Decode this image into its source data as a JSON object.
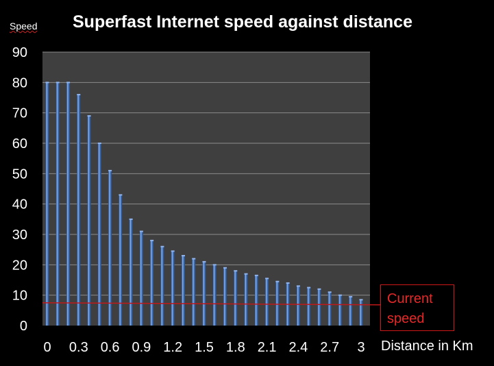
{
  "chart_data": {
    "type": "bar",
    "title": "Superfast Internet speed against distance",
    "ylabel": "Speed",
    "xlabel": "Distance in Km",
    "ylim": [
      0,
      90
    ],
    "y_ticks": [
      0,
      10,
      20,
      30,
      40,
      50,
      60,
      70,
      80,
      90
    ],
    "x_tick_labels": [
      "0",
      "0.3",
      "0.6",
      "0.9",
      "1.2",
      "1.5",
      "1.8",
      "2.1",
      "2.4",
      "2.7",
      "3"
    ],
    "x": [
      0,
      0.1,
      0.2,
      0.3,
      0.4,
      0.5,
      0.6,
      0.7,
      0.8,
      0.9,
      1.0,
      1.1,
      1.2,
      1.3,
      1.4,
      1.5,
      1.6,
      1.7,
      1.8,
      1.9,
      2.0,
      2.1,
      2.2,
      2.3,
      2.4,
      2.5,
      2.6,
      2.7,
      2.8,
      2.9,
      3.0
    ],
    "values": [
      80,
      80,
      80,
      76,
      69,
      60,
      51,
      43,
      35,
      31,
      28,
      26,
      24.5,
      23,
      22,
      21,
      20,
      19,
      18,
      17,
      16.5,
      15.5,
      14.5,
      14,
      13,
      12.5,
      12,
      11,
      10,
      9.5,
      8.5
    ],
    "grid": true,
    "reference_line": {
      "value": 7.5,
      "label": "Current speed",
      "label_lines": [
        "Current",
        "speed"
      ]
    },
    "colors": {
      "background": "#000000",
      "plot_area": "#3f3f3f",
      "bar": "#4a7ec8",
      "bar_highlight": "#8fb4ee",
      "bar_shadow": "#22477f",
      "gridline": "#8c8c8c",
      "reference_line": "#c01818",
      "text": "#ffffff",
      "callout": "#e82828"
    }
  }
}
